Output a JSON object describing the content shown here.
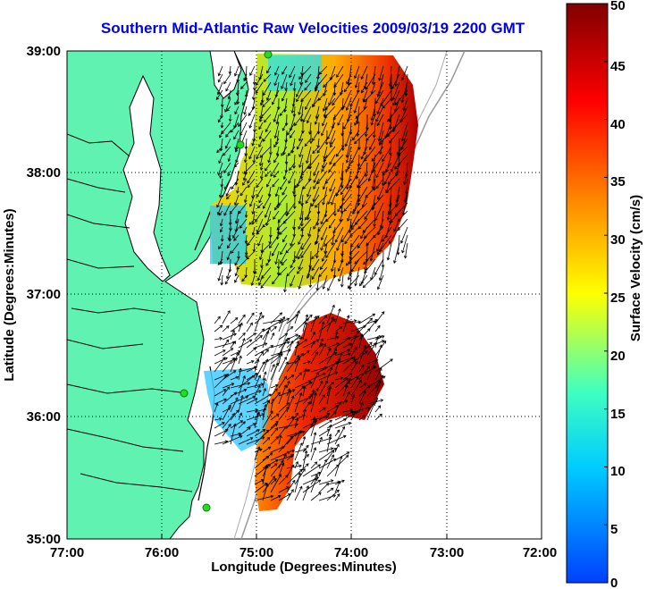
{
  "title": "Southern Mid-Atlantic Raw Velocities 2009/03/19 2200 GMT",
  "axes": {
    "xlabel": "Longitude (Degrees:Minutes)",
    "ylabel": "Latitude (Degrees:Minutes)",
    "x_ticks": [
      "77:00",
      "76:00",
      "75:00",
      "74:00",
      "73:00",
      "72:00"
    ],
    "y_ticks": [
      "39:00",
      "38:00",
      "37:00",
      "36:00",
      "35:00"
    ],
    "x_range_deg_west": [
      77,
      72
    ],
    "y_range_deg_north": [
      35,
      39
    ],
    "grid": "dotted"
  },
  "colorbar": {
    "label": "Surface Velocity (cm/s)",
    "ticks": [
      "50",
      "45",
      "40",
      "35",
      "30",
      "25",
      "20",
      "15",
      "10",
      "5",
      "0"
    ],
    "range": [
      0,
      50
    ],
    "colors": [
      "#0040ff",
      "#00ccff",
      "#40ffc0",
      "#ffff00",
      "#ff8000",
      "#ff0000",
      "#800000"
    ]
  },
  "colors": {
    "land": "#5ff2b0",
    "coastline": "#000000",
    "bathymetry": "#999999",
    "station": "#22dd22"
  },
  "icons": {
    "station": "hf-radar-station-marker",
    "vector": "current-vector-arrow"
  }
}
